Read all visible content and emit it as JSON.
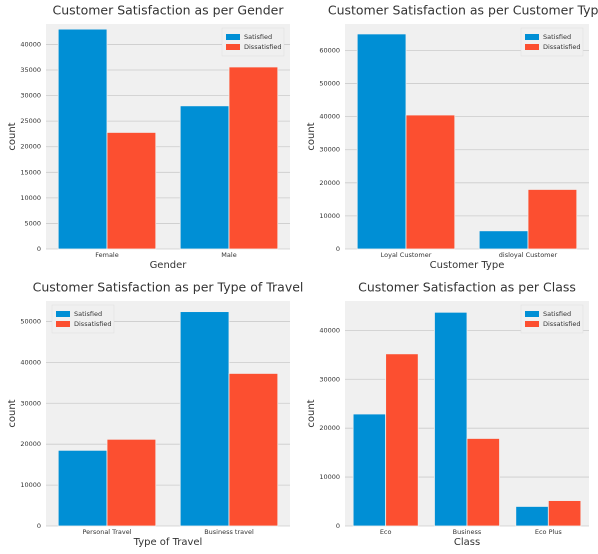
{
  "chart_data": [
    {
      "type": "bar",
      "title": "Customer Satisfaction as per Gender",
      "xlabel": "Gender",
      "ylabel": "count",
      "categories": [
        "Female",
        "Male"
      ],
      "series": [
        {
          "name": "Satisfied",
          "color": "#008fd5",
          "values": [
            43000,
            28000
          ]
        },
        {
          "name": "Dissatisfied",
          "color": "#fc4f30",
          "values": [
            22800,
            35600
          ]
        }
      ],
      "ylim": [
        0,
        44000
      ],
      "yticks": [
        0,
        5000,
        10000,
        15000,
        20000,
        25000,
        30000,
        35000,
        40000
      ],
      "grid": true,
      "legend": "upper right"
    },
    {
      "type": "bar",
      "title": "Customer Satisfaction as per Customer Type",
      "xlabel": "Customer Type",
      "ylabel": "count",
      "categories": [
        "Loyal Customer",
        "disloyal Customer"
      ],
      "series": [
        {
          "name": "Satisfied",
          "color": "#008fd5",
          "values": [
            65000,
            5500
          ]
        },
        {
          "name": "Dissatisfied",
          "color": "#fc4f30",
          "values": [
            40500,
            18000
          ]
        }
      ],
      "ylim": [
        0,
        68000
      ],
      "yticks": [
        0,
        10000,
        20000,
        30000,
        40000,
        50000,
        60000
      ],
      "grid": true,
      "legend": "upper right"
    },
    {
      "type": "bar",
      "title": "Customer Satisfaction as per Type of Travel",
      "xlabel": "Type of Travel",
      "ylabel": "count",
      "categories": [
        "Personal Travel",
        "Business travel"
      ],
      "series": [
        {
          "name": "Satisfied",
          "color": "#008fd5",
          "values": [
            18500,
            52400
          ]
        },
        {
          "name": "Dissatisfied",
          "color": "#fc4f30",
          "values": [
            21200,
            37300
          ]
        }
      ],
      "ylim": [
        0,
        55000
      ],
      "yticks": [
        0,
        10000,
        20000,
        30000,
        40000,
        50000
      ],
      "grid": true,
      "legend": "upper left"
    },
    {
      "type": "bar",
      "title": "Customer Satisfaction as per Class",
      "xlabel": "Class",
      "ylabel": "count",
      "categories": [
        "Eco",
        "Business",
        "Eco Plus"
      ],
      "series": [
        {
          "name": "Satisfied",
          "color": "#008fd5",
          "values": [
            22900,
            43700,
            4000
          ]
        },
        {
          "name": "Dissatisfied",
          "color": "#fc4f30",
          "values": [
            35200,
            17900,
            5200
          ]
        }
      ],
      "ylim": [
        0,
        46000
      ],
      "yticks": [
        0,
        10000,
        20000,
        30000,
        40000
      ],
      "grid": true,
      "legend": "upper right"
    }
  ]
}
